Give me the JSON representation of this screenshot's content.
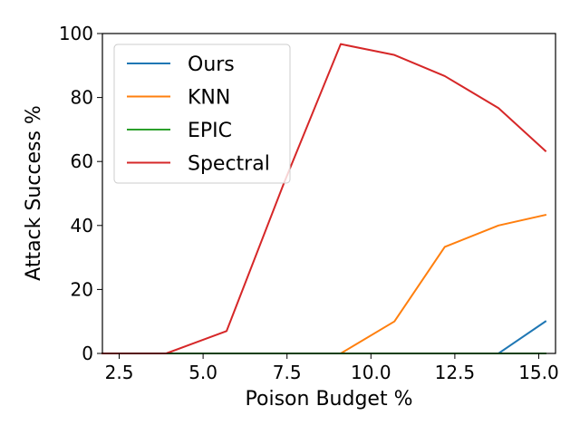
{
  "chart_data": {
    "type": "line",
    "title": "",
    "xlabel": "Poison Budget %",
    "ylabel": "Attack Success %",
    "xlim": [
      2.0,
      15.5
    ],
    "ylim": [
      0,
      100
    ],
    "xticks": [
      2.5,
      5.0,
      7.5,
      10.0,
      12.5,
      15.0
    ],
    "xtick_labels": [
      "2.5",
      "5.0",
      "7.5",
      "10.0",
      "12.5",
      "15.0"
    ],
    "yticks": [
      0,
      20,
      40,
      60,
      80,
      100
    ],
    "ytick_labels": [
      "0",
      "20",
      "40",
      "60",
      "80",
      "100"
    ],
    "grid": false,
    "legend_position": "top-left",
    "x": [
      2.0,
      3.9,
      5.7,
      7.4,
      9.1,
      10.7,
      12.2,
      13.8,
      15.2
    ],
    "series": [
      {
        "name": "Ours",
        "color": "#1f77b4",
        "values": [
          0,
          0,
          0,
          0,
          0,
          0,
          0,
          0,
          10
        ]
      },
      {
        "name": "KNN",
        "color": "#ff7f0e",
        "values": [
          0,
          0,
          0,
          0,
          0,
          10,
          33.3,
          40,
          43.3
        ]
      },
      {
        "name": "EPIC",
        "color": "#2ca02c",
        "values": [
          0,
          0,
          0,
          0,
          0,
          0,
          0,
          0,
          0
        ]
      },
      {
        "name": "Spectral",
        "color": "#d62728",
        "values": [
          0,
          0,
          7,
          53,
          96.7,
          93.3,
          86.7,
          76.7,
          63.3
        ]
      }
    ]
  }
}
